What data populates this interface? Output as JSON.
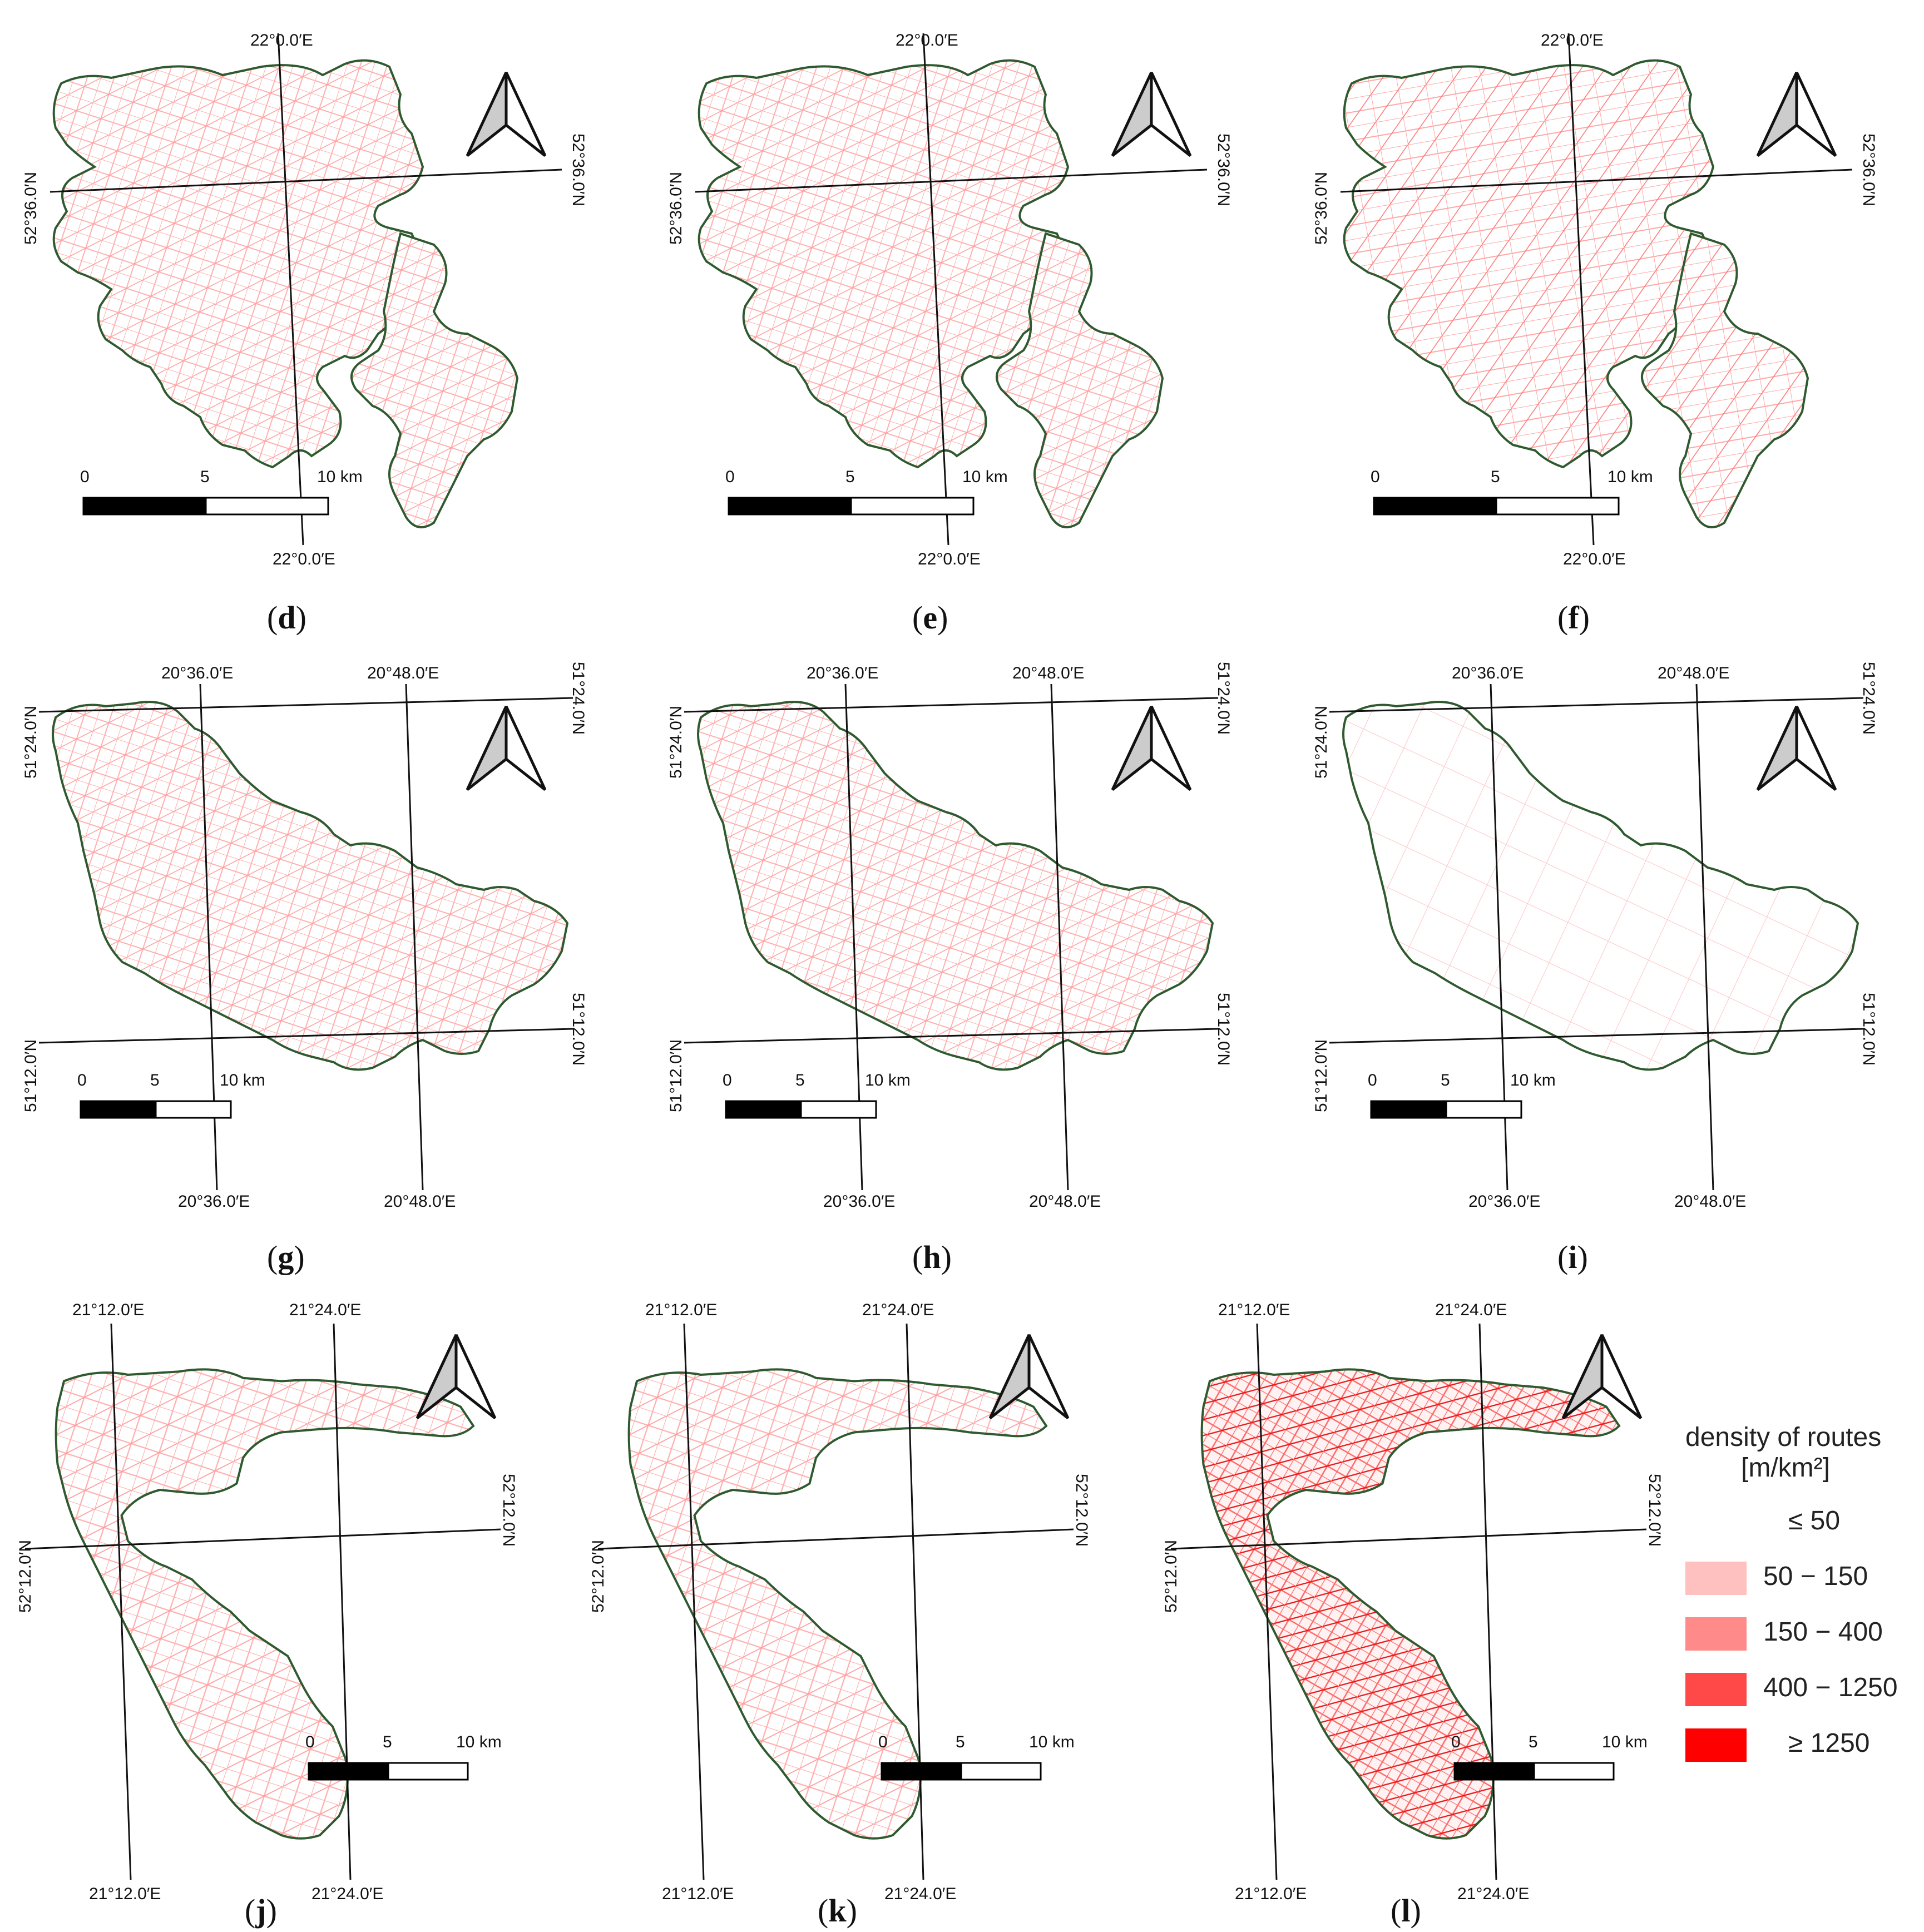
{
  "panels": [
    {
      "id": "d",
      "label": "(d)",
      "letter": "d",
      "lon": [
        "22°0.0′E"
      ],
      "lat": [
        "52°36.0′N"
      ],
      "scale": [
        "0",
        "5",
        "10 km"
      ],
      "density": "low"
    },
    {
      "id": "e",
      "label": "(e)",
      "letter": "e",
      "lon": [
        "22°0.0′E"
      ],
      "lat": [
        "52°36.0′N"
      ],
      "scale": [
        "0",
        "5",
        "10 km"
      ],
      "density": "low"
    },
    {
      "id": "f",
      "label": "(f)",
      "letter": "f",
      "lon": [
        "22°0.0′E"
      ],
      "lat": [
        "52°36.0′N"
      ],
      "scale": [
        "0",
        "5",
        "10 km"
      ],
      "density": "mixed"
    },
    {
      "id": "g",
      "label": "(g)",
      "letter": "g",
      "lon": [
        "20°36.0′E",
        "20°48.0′E"
      ],
      "lat": [
        "51°24.0′N",
        "51°12.0′N"
      ],
      "scale": [
        "0",
        "5",
        "10 km"
      ],
      "density": "low"
    },
    {
      "id": "h",
      "label": "(h)",
      "letter": "h",
      "lon": [
        "20°36.0′E",
        "20°48.0′E"
      ],
      "lat": [
        "51°24.0′N",
        "51°12.0′N"
      ],
      "scale": [
        "0",
        "5",
        "10 km"
      ],
      "density": "low"
    },
    {
      "id": "i",
      "label": "(i)",
      "letter": "i",
      "lon": [
        "20°36.0′E",
        "20°48.0′E"
      ],
      "lat": [
        "51°24.0′N",
        "51°12.0′N"
      ],
      "scale": [
        "0",
        "5",
        "10 km"
      ],
      "density": "sparse"
    },
    {
      "id": "j",
      "label": "(j)",
      "letter": "j",
      "lon": [
        "21°12.0′E",
        "21°24.0′E"
      ],
      "lat": [
        "52°12.0′N"
      ],
      "scale": [
        "0",
        "5",
        "10 km"
      ],
      "density": "low"
    },
    {
      "id": "k",
      "label": "(k)",
      "letter": "k",
      "lon": [
        "21°12.0′E",
        "21°24.0′E"
      ],
      "lat": [
        "52°12.0′N"
      ],
      "scale": [
        "0",
        "5",
        "10 km"
      ],
      "density": "low"
    },
    {
      "id": "l",
      "label": "(l)",
      "letter": "l",
      "lon": [
        "21°12.0′E",
        "21°24.0′E"
      ],
      "lat": [
        "52°12.0′N"
      ],
      "scale": [
        "0",
        "5",
        "10 km"
      ],
      "density": "high"
    }
  ],
  "legend": {
    "title_line1": "density of routes",
    "title_line2": "[m/km²]",
    "classes": [
      {
        "label": "≤  50",
        "color": "#ffffff"
      },
      {
        "label": "50 − 150",
        "color": "#ffc0c0"
      },
      {
        "label": "150 − 400",
        "color": "#ff8a8a"
      },
      {
        "label": "400 − 1250",
        "color": "#ff4848"
      },
      {
        "label": "≥  1250",
        "color": "#ff0000"
      }
    ]
  },
  "colors": {
    "boundary": "#2f5a2f",
    "route_light": "#ffaaaa",
    "route_mid": "#ff6060",
    "route_dark": "#ee1010",
    "grid": "#111111"
  }
}
